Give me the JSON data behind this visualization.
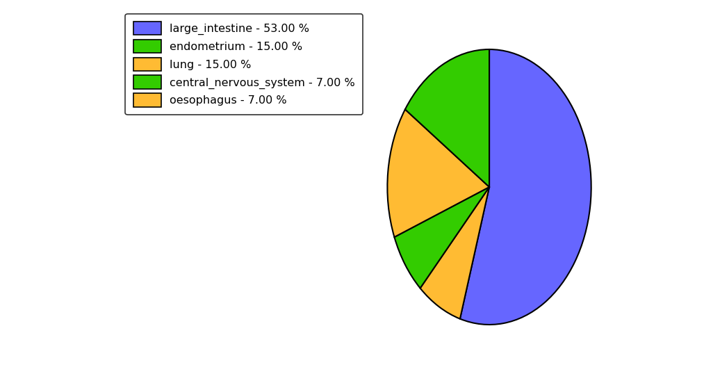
{
  "labels": [
    "large_intestine",
    "oesophagus",
    "central_nervous_system",
    "lung",
    "endometrium"
  ],
  "values": [
    53.0,
    7.0,
    7.0,
    15.0,
    15.0
  ],
  "colors": [
    "#6666ff",
    "#ffbb33",
    "#33cc00",
    "#ffbb33",
    "#33cc00"
  ],
  "legend_labels": [
    "large_intestine - 53.00 %",
    "endometrium - 15.00 %",
    "lung - 15.00 %",
    "central_nervous_system - 7.00 %",
    "oesophagus - 7.00 %"
  ],
  "legend_colors": [
    "#6666ff",
    "#33cc00",
    "#ffbb33",
    "#33cc00",
    "#ffbb33"
  ],
  "startangle": 90,
  "figsize": [
    10.13,
    5.38
  ],
  "dpi": 100
}
